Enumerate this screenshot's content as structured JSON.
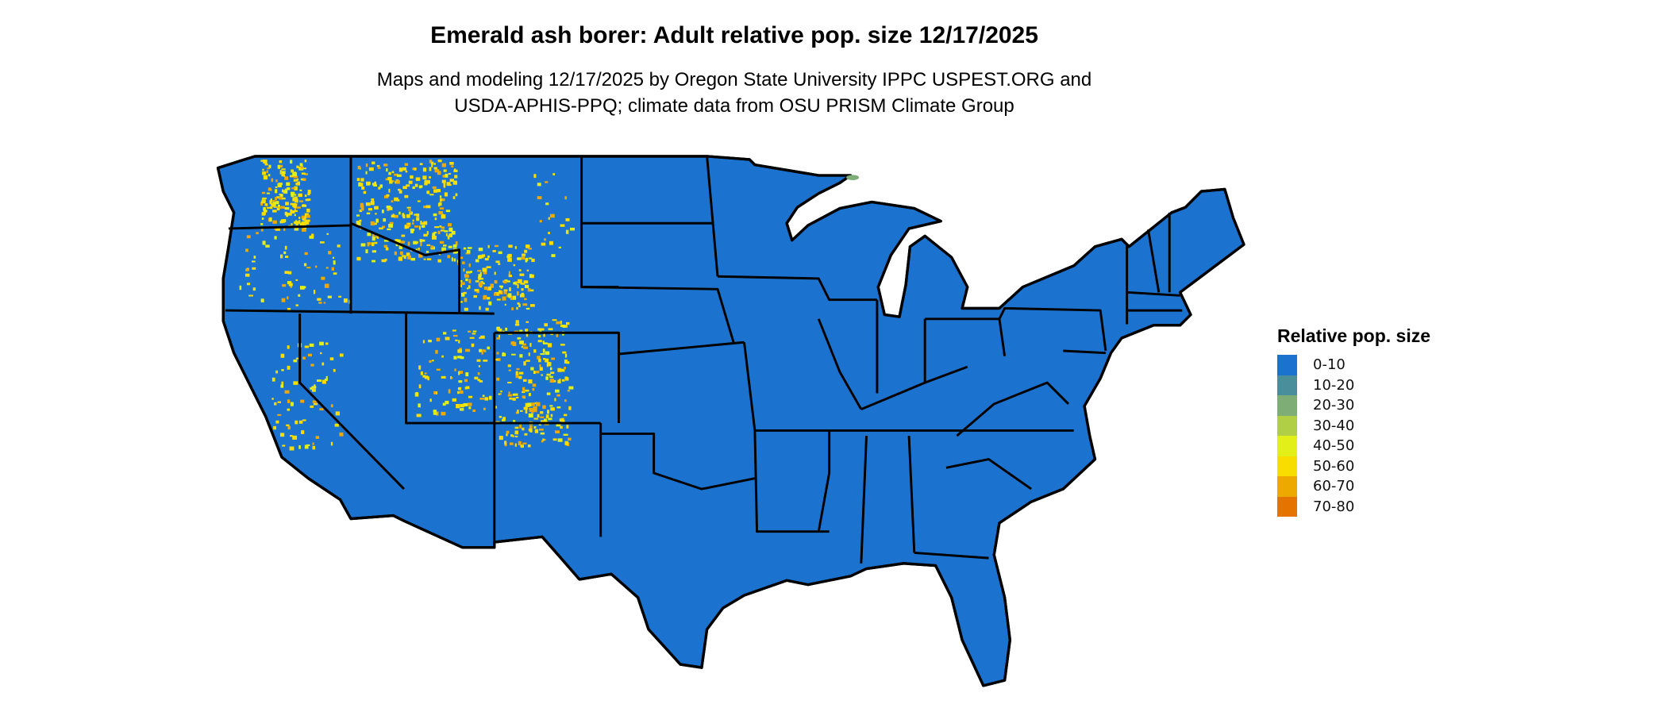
{
  "title": "Emerald ash borer: Adult relative pop. size 12/17/2025",
  "subtitle_line1": "Maps and modeling 12/17/2025 by Oregon State University IPPC USPEST.ORG and",
  "subtitle_line2": "USDA-APHIS-PPQ; climate data from OSU PRISM Climate Group",
  "legend": {
    "title": "Relative pop. size",
    "items": [
      {
        "label": "0-10",
        "color": "#1c73cf"
      },
      {
        "label": "10-20",
        "color": "#4a8e9c"
      },
      {
        "label": "20-30",
        "color": "#7eae75"
      },
      {
        "label": "30-40",
        "color": "#b0cf45"
      },
      {
        "label": "40-50",
        "color": "#e3ef18"
      },
      {
        "label": "50-60",
        "color": "#f7de00"
      },
      {
        "label": "60-70",
        "color": "#eda900"
      },
      {
        "label": "70-80",
        "color": "#e47300"
      }
    ]
  },
  "map": {
    "region": "Contiguous United States",
    "base_class": "0-10",
    "hotspot_classes": [
      "50-60",
      "60-70",
      "40-50"
    ],
    "border_color": "#000000"
  }
}
